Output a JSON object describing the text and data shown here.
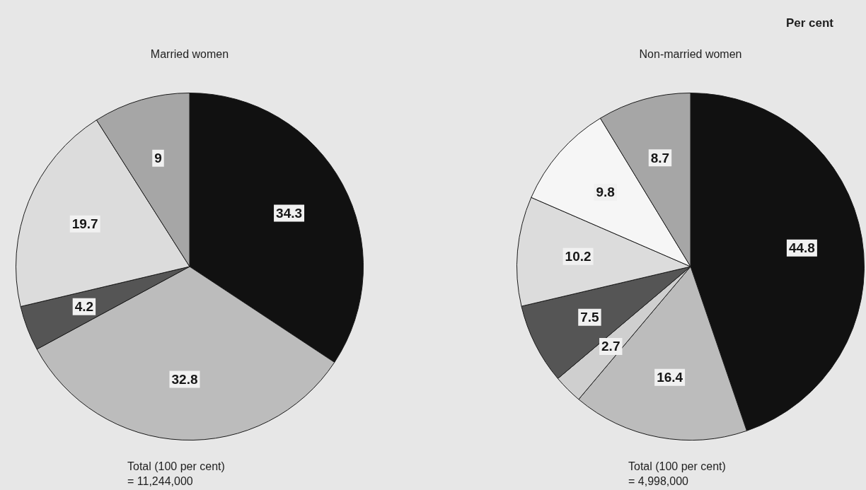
{
  "chart_data": [
    {
      "type": "pie",
      "title": "Married women",
      "categories": [
        null,
        null,
        null,
        null,
        null
      ],
      "values": [
        34.3,
        32.8,
        4.2,
        19.7,
        9
      ],
      "colors": [
        "#111111",
        "#bcbcbc",
        "#555555",
        "#dcdcdc",
        "#a6a6a6"
      ],
      "data_labels": true,
      "annotations": [
        "Total (100 per cent)",
        "= 11,244,000"
      ]
    },
    {
      "type": "pie",
      "title": "Non-married women",
      "subtitle": "Per cent",
      "categories": [
        null,
        null,
        null,
        null,
        null,
        null,
        null
      ],
      "values": [
        44.8,
        16.4,
        2.7,
        7.5,
        10.2,
        9.8,
        8.7
      ],
      "colors": [
        "#111111",
        "#bcbcbc",
        "#cfcfcf",
        "#555555",
        "#dcdcdc",
        "#f6f6f6",
        "#a6a6a6"
      ],
      "data_labels": true,
      "annotations": [
        "Total (100 per cent)",
        "= 4,998,000"
      ]
    }
  ]
}
